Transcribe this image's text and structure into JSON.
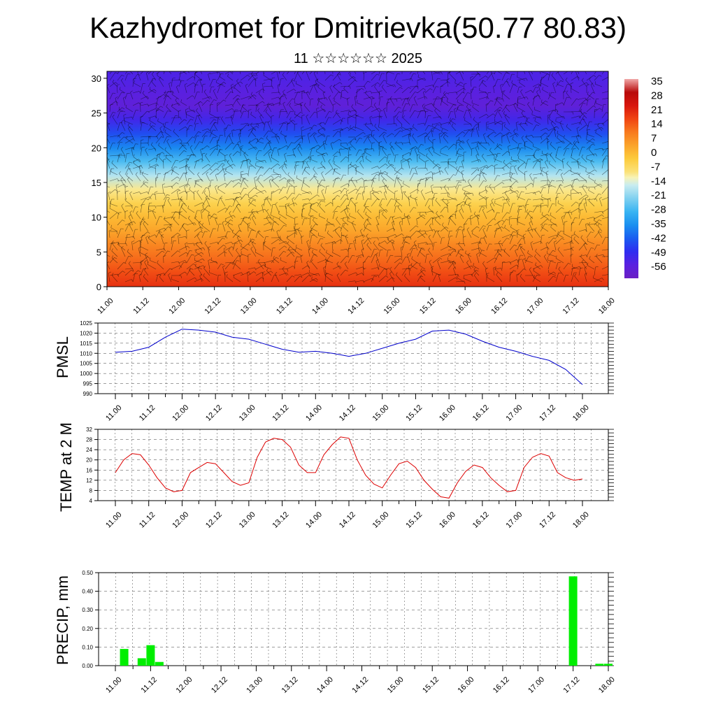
{
  "header": {
    "title": "Kazhydromet for Dmitrievka(50.77 80.83)",
    "subtitle": "11 ☆☆☆☆☆☆ 2025"
  },
  "time_labels": [
    "11.00",
    "11.12",
    "12.00",
    "12.12",
    "13.00",
    "13.12",
    "14.00",
    "14.12",
    "15.00",
    "15.12",
    "16.00",
    "16.12",
    "17.00",
    "17.12",
    "18.00"
  ],
  "chart_data": [
    {
      "type": "heatmap",
      "title": "",
      "xlabel": "",
      "ylabel": "",
      "x": [
        "11.00",
        "11.12",
        "12.00",
        "12.12",
        "13.00",
        "13.12",
        "14.00",
        "14.12",
        "15.00",
        "15.12",
        "16.00",
        "16.12",
        "17.00",
        "17.12",
        "18.00"
      ],
      "ylim": [
        0,
        31
      ],
      "yticks": [
        0,
        5,
        10,
        15,
        20,
        25,
        30
      ],
      "colorbar": {
        "labels": [
          "35",
          "28",
          "21",
          "14",
          "7",
          "0",
          "-7",
          "-14",
          "-21",
          "-28",
          "-35",
          "-42",
          "-49",
          "-56"
        ],
        "range": [
          -63,
          42
        ]
      },
      "levels_km": [
        0,
        2,
        4,
        6,
        8,
        10,
        12,
        14,
        16,
        18,
        20,
        22,
        24,
        26,
        28,
        30
      ],
      "temperature_profile_c": [
        24,
        20,
        16,
        12,
        7,
        3,
        -2,
        -8,
        -16,
        -26,
        -36,
        -44,
        -52,
        -58,
        -56,
        -54
      ],
      "overlay": "wind barbs"
    },
    {
      "type": "line",
      "ylabel": "PMSL",
      "ylim": [
        990,
        1025
      ],
      "yticks": [
        990,
        995,
        1000,
        1005,
        1010,
        1015,
        1020,
        1025
      ],
      "series_color": "#0000cc",
      "x_hours": [
        0,
        6,
        12,
        18,
        24,
        30,
        36,
        42,
        48,
        54,
        60,
        66,
        72,
        78,
        84,
        90,
        96,
        102,
        108,
        114,
        120,
        126,
        132,
        138,
        144,
        150,
        156,
        162,
        168
      ],
      "values": [
        1010.5,
        1011,
        1013,
        1018,
        1022,
        1021.5,
        1020.5,
        1018,
        1017,
        1014.5,
        1012,
        1010.5,
        1011,
        1010,
        1008.5,
        1010,
        1012.5,
        1015,
        1017,
        1021,
        1021.5,
        1019.5,
        1016,
        1013,
        1011,
        1008.5,
        1006.5,
        1002,
        994.5
      ]
    },
    {
      "type": "line",
      "ylabel": "TEMP at 2 M",
      "ylim": [
        4,
        32
      ],
      "yticks": [
        4,
        8,
        12,
        16,
        20,
        24,
        28,
        32
      ],
      "series_color": "#dd0000",
      "x_hours": [
        0,
        3,
        6,
        9,
        12,
        15,
        18,
        21,
        24,
        27,
        30,
        33,
        36,
        39,
        42,
        45,
        48,
        51,
        54,
        57,
        60,
        63,
        66,
        69,
        72,
        75,
        78,
        81,
        84,
        87,
        90,
        93,
        96,
        99,
        102,
        105,
        108,
        111,
        114,
        117,
        120,
        123,
        126,
        129,
        132,
        135,
        138,
        141,
        144,
        147,
        150,
        153,
        156,
        159,
        162,
        165,
        168
      ],
      "values": [
        15,
        20,
        22.5,
        22,
        18,
        13,
        9,
        7.5,
        8,
        15,
        17,
        19,
        18.5,
        15,
        11.5,
        10,
        11,
        21,
        27,
        28.5,
        28,
        25,
        18,
        15,
        15,
        22,
        26,
        29,
        28.5,
        20,
        14,
        10.5,
        9,
        14,
        18.5,
        19.5,
        17,
        12,
        8.5,
        5.5,
        5,
        11,
        15.5,
        18,
        17,
        13,
        10,
        7.5,
        8,
        17,
        21,
        22.5,
        21.5,
        15,
        13,
        12,
        12.5
      ]
    },
    {
      "type": "bar",
      "ylabel": "PRECIP, mm",
      "ylim": [
        0,
        0.5
      ],
      "yticks": [
        "0.00",
        "0.10",
        "0.20",
        "0.30",
        "0.40",
        "0.50"
      ],
      "series_color": "#00ee00",
      "x_hours": [
        3,
        9,
        12,
        15,
        156,
        165,
        168
      ],
      "values": [
        0.09,
        0.04,
        0.11,
        0.02,
        0.48,
        0.01,
        0.01
      ]
    }
  ]
}
